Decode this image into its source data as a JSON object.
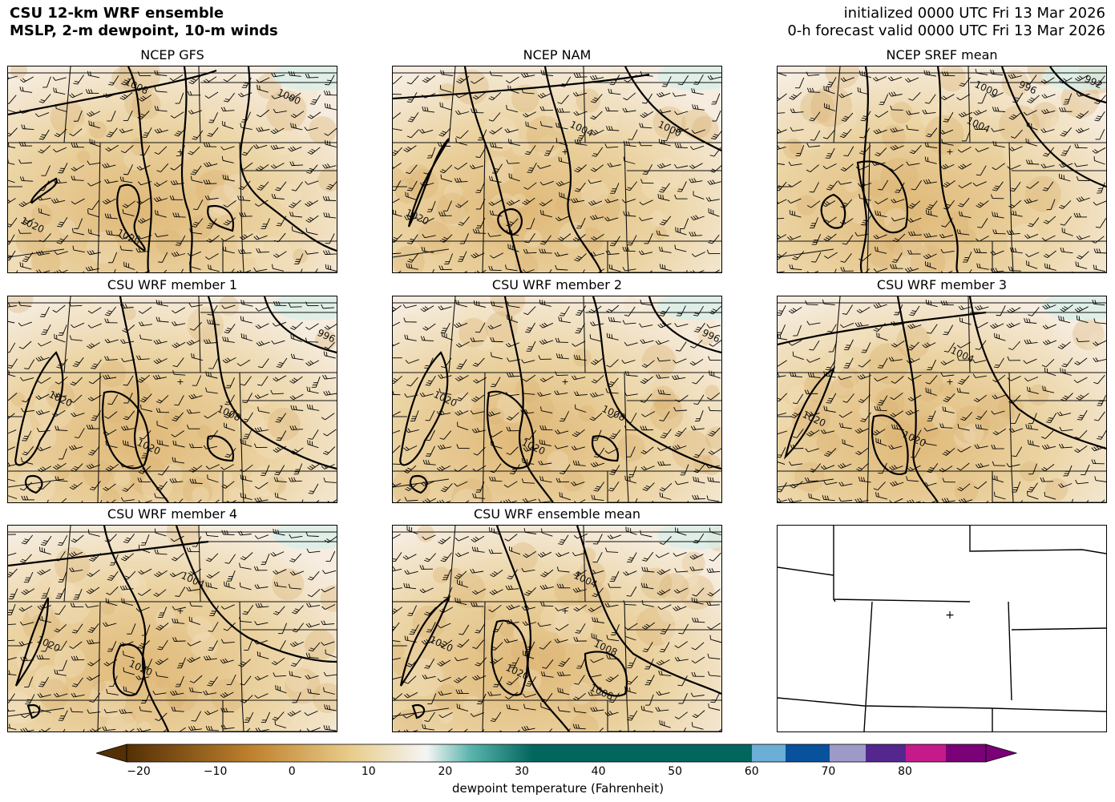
{
  "header": {
    "line1": "CSU 12-km WRF ensemble",
    "line2": "MSLP, 2-m dewpoint, 10-m winds",
    "init": "initialized 0000 UTC Fri 13 Mar 2026",
    "valid": "0-h forecast valid 0000 UTC Fri 13 Mar 2026"
  },
  "panels": [
    {
      "title": "NCEP GFS",
      "labels": [
        "1008",
        "1000",
        "1020",
        "1020"
      ]
    },
    {
      "title": "NCEP NAM",
      "labels": [
        "1004",
        "1000",
        "1020"
      ]
    },
    {
      "title": "NCEP SREF mean",
      "labels": [
        "1000",
        "996",
        "992",
        "1004"
      ]
    },
    {
      "title": "CSU WRF member 1",
      "labels": [
        "996",
        "1020",
        "1008",
        "1020"
      ]
    },
    {
      "title": "CSU WRF member 2",
      "labels": [
        "996",
        "1020",
        "1008",
        "1020"
      ]
    },
    {
      "title": "CSU WRF member 3",
      "labels": [
        "1004",
        "1020",
        "1020"
      ]
    },
    {
      "title": "CSU WRF member 4",
      "labels": [
        "1004",
        "1020",
        "1020"
      ]
    },
    {
      "title": "CSU WRF ensemble mean",
      "labels": [
        "1004",
        "1020",
        "1008",
        "1020",
        "1008"
      ]
    },
    {
      "title": "",
      "labels": []
    }
  ],
  "colorbar": {
    "label": "dewpoint temperature (Fahrenheit)",
    "ticks": [
      "−20",
      "−10",
      "0",
      "10",
      "20",
      "30",
      "40",
      "50",
      "60",
      "70",
      "80"
    ],
    "colors": {
      "brown_dark": "#543005",
      "brown": "#bf812d",
      "tan": "#e8cd8c",
      "white": "#f5f5f5",
      "teal": "#5ab4ac",
      "teal_dark": "#01665e",
      "blue_light": "#6baed6",
      "blue": "#08519c",
      "purple_light": "#9e9ac8",
      "purple": "#54278f",
      "magenta": "#c51b8a",
      "magenta_dark": "#7a0177"
    }
  }
}
